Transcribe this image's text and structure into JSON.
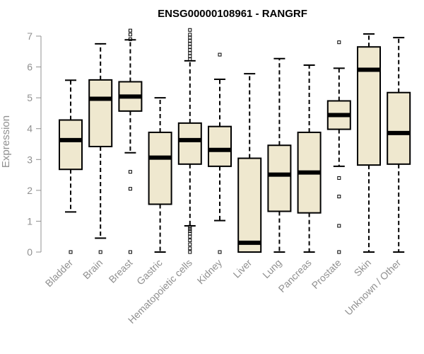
{
  "chart_data": {
    "type": "boxplot",
    "title": "ENSG00000108961 - RANGRF",
    "xlabel": "",
    "ylabel": "Expression",
    "ylim": [
      0,
      7
    ],
    "yticks": [
      0,
      1,
      2,
      3,
      4,
      5,
      6,
      7
    ],
    "categories": [
      "Bladder",
      "Brain",
      "Breast",
      "Gastric",
      "Hematopoietic cells",
      "Kidney",
      "Liver",
      "Lung",
      "Pancreas",
      "Prostate",
      "Skin",
      "Unknown / Other"
    ],
    "boxes": [
      {
        "category": "Bladder",
        "whisker_low": 1.3,
        "q1": 2.68,
        "median": 3.63,
        "q3": 4.28,
        "whisker_high": 5.57,
        "outliers": [
          0.0
        ]
      },
      {
        "category": "Brain",
        "whisker_low": 0.45,
        "q1": 3.42,
        "median": 4.97,
        "q3": 5.58,
        "whisker_high": 6.75,
        "outliers": [
          0.0
        ]
      },
      {
        "category": "Breast",
        "whisker_low": 3.22,
        "q1": 4.57,
        "median": 5.04,
        "q3": 5.52,
        "whisker_high": 6.88,
        "outliers": [
          0.0,
          2.05,
          2.6,
          6.9,
          7.05,
          7.18
        ]
      },
      {
        "category": "Gastric",
        "whisker_low": 0.0,
        "q1": 1.55,
        "median": 3.06,
        "q3": 3.88,
        "whisker_high": 5.0,
        "outliers": []
      },
      {
        "category": "Hematopoietic cells",
        "whisker_low": 0.85,
        "q1": 2.85,
        "median": 3.63,
        "q3": 4.18,
        "whisker_high": 6.2,
        "outliers": [
          0.0,
          0.12,
          0.25,
          0.38,
          0.5,
          0.6,
          0.68,
          0.75,
          0.82,
          6.25,
          6.35,
          6.45,
          6.55,
          6.65,
          6.75,
          6.85,
          6.95,
          7.05,
          7.2
        ]
      },
      {
        "category": "Kidney",
        "whisker_low": 1.02,
        "q1": 2.78,
        "median": 3.31,
        "q3": 4.07,
        "whisker_high": 5.6,
        "outliers": [
          0.0,
          6.4
        ]
      },
      {
        "category": "Liver",
        "whisker_low": 0.0,
        "q1": 0.0,
        "median": 0.3,
        "q3": 3.04,
        "whisker_high": 5.78,
        "outliers": []
      },
      {
        "category": "Lung",
        "whisker_low": 0.0,
        "q1": 1.32,
        "median": 2.51,
        "q3": 3.46,
        "whisker_high": 6.27,
        "outliers": []
      },
      {
        "category": "Pancreas",
        "whisker_low": 0.0,
        "q1": 1.27,
        "median": 2.58,
        "q3": 3.88,
        "whisker_high": 6.06,
        "outliers": []
      },
      {
        "category": "Prostate",
        "whisker_low": 2.78,
        "q1": 3.98,
        "median": 4.44,
        "q3": 4.9,
        "whisker_high": 5.96,
        "outliers": [
          0.0,
          0.85,
          1.8,
          2.4,
          6.8
        ]
      },
      {
        "category": "Skin",
        "whisker_low": 0.0,
        "q1": 2.82,
        "median": 5.91,
        "q3": 6.65,
        "whisker_high": 7.07,
        "outliers": []
      },
      {
        "category": "Unknown / Other",
        "whisker_low": 0.0,
        "q1": 2.85,
        "median": 3.86,
        "q3": 5.17,
        "whisker_high": 6.95,
        "outliers": []
      }
    ],
    "colors": {
      "box_fill": "#efe8cf",
      "stroke": "#000000",
      "axis": "#909090",
      "text": "#909090"
    }
  }
}
